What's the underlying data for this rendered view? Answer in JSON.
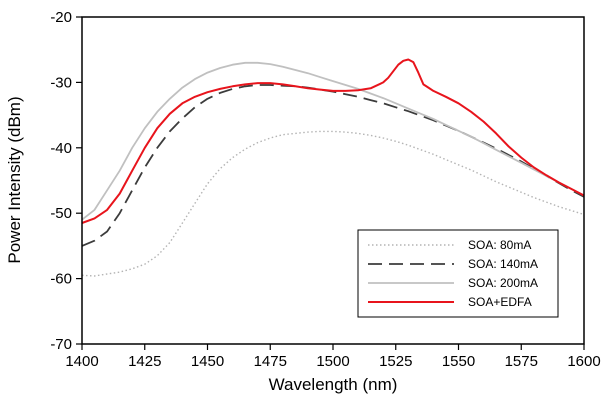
{
  "chart_data": {
    "type": "line",
    "title": "",
    "xlabel": "Wavelength (nm)",
    "ylabel": "Power Intensity (dBm)",
    "xlim": [
      1400,
      1600
    ],
    "ylim": [
      -70,
      -20
    ],
    "xticks": [
      1400,
      1425,
      1450,
      1475,
      1500,
      1525,
      1550,
      1575,
      1600
    ],
    "yticks": [
      -70,
      -60,
      -50,
      -40,
      -30,
      -20
    ],
    "grid": false,
    "legend_position": "bottom-right",
    "series": [
      {
        "name": "SOA: 80mA",
        "color": "#b4b4b4",
        "style": "dotted",
        "x": [
          1400,
          1405,
          1410,
          1415,
          1420,
          1425,
          1430,
          1435,
          1440,
          1445,
          1450,
          1455,
          1460,
          1465,
          1470,
          1475,
          1480,
          1485,
          1490,
          1495,
          1500,
          1505,
          1510,
          1515,
          1520,
          1525,
          1530,
          1535,
          1540,
          1545,
          1550,
          1555,
          1560,
          1565,
          1570,
          1575,
          1580,
          1585,
          1590,
          1595,
          1600
        ],
        "y": [
          -59.5,
          -59.6,
          -59.3,
          -59.0,
          -58.5,
          -57.8,
          -56.5,
          -54.5,
          -51.5,
          -48.5,
          -45.5,
          -43.2,
          -41.5,
          -40.2,
          -39.2,
          -38.5,
          -38.0,
          -37.8,
          -37.6,
          -37.5,
          -37.5,
          -37.6,
          -37.8,
          -38.1,
          -38.5,
          -39.0,
          -39.6,
          -40.3,
          -41.0,
          -41.8,
          -42.6,
          -43.4,
          -44.3,
          -45.2,
          -46.0,
          -46.8,
          -47.6,
          -48.3,
          -49.0,
          -49.6,
          -50.2
        ]
      },
      {
        "name": "SOA: 140mA",
        "color": "#3c3c3c",
        "style": "dashed",
        "x": [
          1400,
          1405,
          1410,
          1415,
          1420,
          1425,
          1430,
          1435,
          1440,
          1445,
          1450,
          1455,
          1460,
          1465,
          1470,
          1475,
          1480,
          1485,
          1490,
          1495,
          1500,
          1505,
          1510,
          1515,
          1520,
          1525,
          1530,
          1535,
          1540,
          1545,
          1550,
          1555,
          1560,
          1565,
          1570,
          1575,
          1580,
          1585,
          1590,
          1595,
          1600
        ],
        "y": [
          -55.0,
          -54.2,
          -52.8,
          -50.0,
          -46.5,
          -43.0,
          -40.0,
          -37.5,
          -35.5,
          -33.8,
          -32.5,
          -31.6,
          -31.0,
          -30.6,
          -30.4,
          -30.4,
          -30.5,
          -30.6,
          -30.8,
          -31.1,
          -31.4,
          -31.8,
          -32.2,
          -32.7,
          -33.2,
          -33.8,
          -34.4,
          -35.1,
          -35.8,
          -36.6,
          -37.4,
          -38.3,
          -39.2,
          -40.1,
          -41.1,
          -42.1,
          -43.2,
          -44.3,
          -45.4,
          -46.5,
          -47.5
        ]
      },
      {
        "name": "SOA: 200mA",
        "color": "#c0c0c0",
        "style": "solid",
        "x": [
          1400,
          1405,
          1410,
          1415,
          1420,
          1425,
          1430,
          1435,
          1440,
          1445,
          1450,
          1455,
          1460,
          1465,
          1470,
          1475,
          1480,
          1485,
          1490,
          1495,
          1500,
          1505,
          1510,
          1515,
          1520,
          1525,
          1530,
          1535,
          1540,
          1545,
          1550,
          1555,
          1560,
          1565,
          1570,
          1575,
          1580,
          1585,
          1590,
          1595,
          1600
        ],
        "y": [
          -51.0,
          -49.5,
          -46.5,
          -43.5,
          -40.0,
          -37.0,
          -34.5,
          -32.5,
          -30.8,
          -29.5,
          -28.5,
          -27.8,
          -27.3,
          -27.0,
          -27.0,
          -27.2,
          -27.6,
          -28.1,
          -28.6,
          -29.2,
          -29.8,
          -30.4,
          -31.0,
          -31.7,
          -32.4,
          -33.2,
          -34.0,
          -34.8,
          -35.6,
          -36.5,
          -37.4,
          -38.3,
          -39.3,
          -40.3,
          -41.3,
          -42.3,
          -43.3,
          -44.3,
          -45.3,
          -46.3,
          -47.3
        ]
      },
      {
        "name": "SOA+EDFA",
        "color": "#e8141c",
        "style": "solid",
        "x": [
          1400,
          1405,
          1410,
          1415,
          1420,
          1425,
          1430,
          1435,
          1440,
          1445,
          1450,
          1455,
          1460,
          1465,
          1470,
          1475,
          1480,
          1485,
          1490,
          1495,
          1500,
          1505,
          1510,
          1515,
          1520,
          1522,
          1524,
          1526,
          1528,
          1530,
          1532,
          1534,
          1536,
          1538,
          1540,
          1545,
          1550,
          1555,
          1560,
          1565,
          1570,
          1575,
          1580,
          1585,
          1590,
          1595,
          1600
        ],
        "y": [
          -51.5,
          -50.8,
          -49.5,
          -47.0,
          -43.5,
          -40.0,
          -37.0,
          -34.8,
          -33.2,
          -32.2,
          -31.5,
          -31.0,
          -30.6,
          -30.3,
          -30.1,
          -30.1,
          -30.3,
          -30.6,
          -30.9,
          -31.1,
          -31.3,
          -31.3,
          -31.2,
          -30.9,
          -30.0,
          -29.3,
          -28.3,
          -27.3,
          -26.7,
          -26.5,
          -26.9,
          -28.5,
          -30.3,
          -30.8,
          -31.3,
          -32.2,
          -33.2,
          -34.5,
          -36.0,
          -37.8,
          -39.8,
          -41.5,
          -43.0,
          -44.2,
          -45.3,
          -46.3,
          -47.3
        ]
      }
    ]
  }
}
